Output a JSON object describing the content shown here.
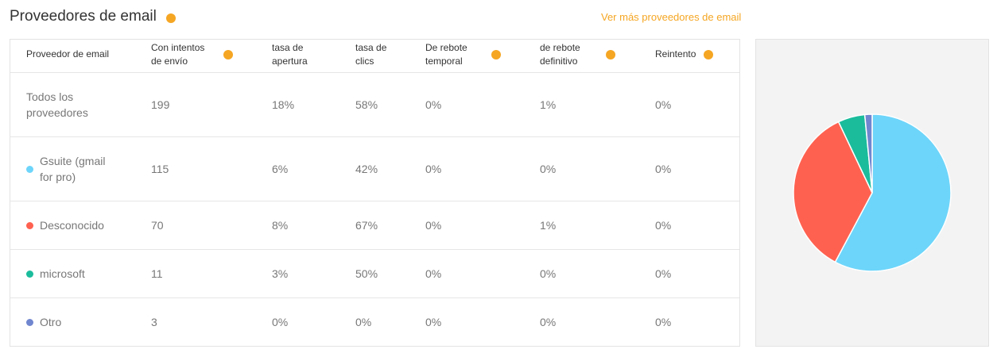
{
  "header": {
    "title": "Proveedores de email",
    "link": "Ver más proveedores de email"
  },
  "table": {
    "columns": [
      "Proveedor de email",
      "Con intentos de envío",
      "tasa de apertura",
      "tasa de clics",
      "De rebote temporal",
      "de rebote definitivo",
      "Reintento"
    ],
    "help_columns": [
      1,
      4,
      5,
      6
    ],
    "rows": [
      {
        "name": "Todos los proveedores",
        "cells": [
          199,
          "18%",
          "58%",
          "0%",
          "1%",
          "0%"
        ]
      },
      {
        "name": "Gsuite (gmail for pro)",
        "color": "#6dd5fa",
        "cells": [
          115,
          "6%",
          "42%",
          "0%",
          "0%",
          "0%"
        ]
      },
      {
        "name": "Desconocido",
        "color": "#ff6150",
        "cells": [
          70,
          "8%",
          "67%",
          "0%",
          "1%",
          "0%"
        ]
      },
      {
        "name": "microsoft",
        "color": "#1abc9c",
        "cells": [
          11,
          "3%",
          "50%",
          "0%",
          "0%",
          "0%"
        ]
      },
      {
        "name": "Otro",
        "color": "#7086cf",
        "cells": [
          3,
          "0%",
          "0%",
          "0%",
          "0%",
          "0%"
        ]
      }
    ]
  }
}
